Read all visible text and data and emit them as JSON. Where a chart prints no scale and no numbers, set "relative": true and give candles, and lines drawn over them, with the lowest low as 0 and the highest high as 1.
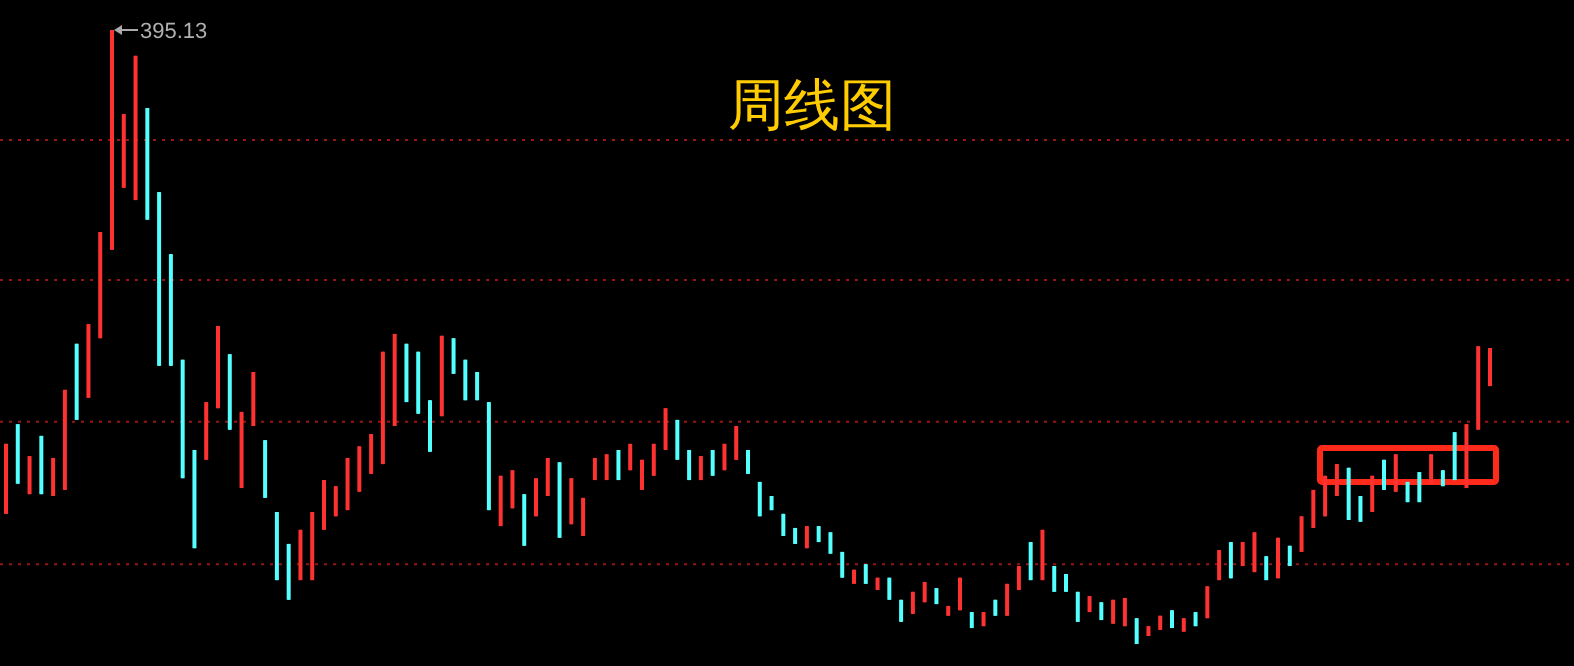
{
  "chart_data": {
    "type": "candlestick",
    "title": "周线图",
    "relative": true,
    "categories": [
      null,
      null,
      null,
      null,
      null,
      null,
      null,
      null,
      null,
      null,
      null,
      null,
      null,
      null,
      null,
      null,
      null,
      null,
      null,
      null,
      null,
      null,
      null,
      null,
      null,
      null,
      null,
      null,
      null,
      null,
      null,
      null,
      null,
      null,
      null,
      null,
      null,
      null,
      null,
      null,
      null,
      null,
      null,
      null,
      null,
      null,
      null,
      null,
      null,
      null,
      null,
      null,
      null,
      null,
      null,
      null,
      null,
      null,
      null,
      null,
      null,
      null,
      null,
      null,
      null,
      null,
      null,
      null,
      null,
      null,
      null,
      null,
      null,
      null,
      null,
      null,
      null,
      null,
      null,
      null,
      null,
      null,
      null,
      null,
      null,
      null,
      null,
      null,
      null,
      null,
      null,
      null,
      null,
      null,
      null,
      null,
      null,
      null,
      null,
      null,
      null,
      null,
      null,
      null,
      null,
      null,
      null,
      null,
      null,
      null,
      null,
      null,
      null,
      null,
      null,
      null,
      null,
      null,
      null,
      null,
      null,
      null,
      null,
      null,
      null,
      null,
      null
    ],
    "ohlc": [
      [
        0.212,
        0.326,
        0.212,
        0.326
      ],
      [
        0.358,
        0.358,
        0.261,
        0.261
      ],
      [
        0.244,
        0.306,
        0.244,
        0.306
      ],
      [
        0.339,
        0.339,
        0.244,
        0.244
      ],
      [
        0.241,
        0.303,
        0.241,
        0.303
      ],
      [
        0.251,
        0.414,
        0.251,
        0.414
      ],
      [
        0.489,
        0.489,
        0.365,
        0.365
      ],
      [
        0.401,
        0.521,
        0.401,
        0.521
      ],
      [
        0.498,
        0.671,
        0.498,
        0.671
      ],
      [
        0.642,
        1,
        0.642,
        1
      ],
      [
        0.743,
        0.863,
        0.743,
        0.863
      ],
      [
        0.723,
        0.958,
        0.723,
        0.958
      ],
      [
        0.873,
        0.873,
        0.691,
        0.691
      ],
      [
        0.736,
        0.736,
        0.453,
        0.453
      ],
      [
        0.635,
        0.635,
        0.453,
        0.453
      ],
      [
        0.463,
        0.463,
        0.27,
        0.27
      ],
      [
        0.316,
        0.316,
        0.156,
        0.156
      ],
      [
        0.3,
        0.394,
        0.3,
        0.394
      ],
      [
        0.384,
        0.518,
        0.384,
        0.518
      ],
      [
        0.472,
        0.472,
        0.349,
        0.349
      ],
      [
        0.254,
        0.378,
        0.254,
        0.378
      ],
      [
        0.355,
        0.443,
        0.355,
        0.443
      ],
      [
        0.332,
        0.332,
        0.238,
        0.238
      ],
      [
        0.215,
        0.215,
        0.104,
        0.104
      ],
      [
        0.163,
        0.163,
        0.072,
        0.072
      ],
      [
        0.104,
        0.186,
        0.104,
        0.186
      ],
      [
        0.104,
        0.215,
        0.104,
        0.215
      ],
      [
        0.186,
        0.267,
        0.186,
        0.267
      ],
      [
        0.208,
        0.257,
        0.208,
        0.257
      ],
      [
        0.218,
        0.303,
        0.218,
        0.303
      ],
      [
        0.248,
        0.322,
        0.248,
        0.322
      ],
      [
        0.277,
        0.342,
        0.277,
        0.342
      ],
      [
        0.293,
        0.476,
        0.293,
        0.476
      ],
      [
        0.355,
        0.505,
        0.355,
        0.505
      ],
      [
        0.489,
        0.489,
        0.394,
        0.394
      ],
      [
        0.476,
        0.476,
        0.375,
        0.375
      ],
      [
        0.397,
        0.397,
        0.313,
        0.313
      ],
      [
        0.371,
        0.502,
        0.371,
        0.502
      ],
      [
        0.498,
        0.498,
        0.44,
        0.44
      ],
      [
        0.463,
        0.463,
        0.397,
        0.397
      ],
      [
        0.443,
        0.443,
        0.397,
        0.397
      ],
      [
        0.394,
        0.394,
        0.218,
        0.218
      ],
      [
        0.192,
        0.274,
        0.192,
        0.274
      ],
      [
        0.221,
        0.283,
        0.221,
        0.283
      ],
      [
        0.244,
        0.244,
        0.16,
        0.16
      ],
      [
        0.208,
        0.27,
        0.208,
        0.27
      ],
      [
        0.241,
        0.303,
        0.241,
        0.303
      ],
      [
        0.296,
        0.296,
        0.173,
        0.173
      ],
      [
        0.195,
        0.27,
        0.195,
        0.27
      ],
      [
        0.176,
        0.238,
        0.176,
        0.238
      ],
      [
        0.267,
        0.303,
        0.267,
        0.303
      ],
      [
        0.267,
        0.309,
        0.267,
        0.309
      ],
      [
        0.316,
        0.316,
        0.267,
        0.267
      ],
      [
        0.283,
        0.326,
        0.283,
        0.326
      ],
      [
        0.251,
        0.3,
        0.251,
        0.3
      ],
      [
        0.274,
        0.326,
        0.274,
        0.326
      ],
      [
        0.316,
        0.384,
        0.316,
        0.384
      ],
      [
        0.365,
        0.365,
        0.3,
        0.3
      ],
      [
        0.316,
        0.316,
        0.267,
        0.267
      ],
      [
        0.267,
        0.306,
        0.267,
        0.306
      ],
      [
        0.316,
        0.316,
        0.274,
        0.274
      ],
      [
        0.283,
        0.326,
        0.283,
        0.326
      ],
      [
        0.3,
        0.355,
        0.3,
        0.355
      ],
      [
        0.316,
        0.316,
        0.277,
        0.277
      ],
      [
        0.264,
        0.264,
        0.208,
        0.208
      ],
      [
        0.241,
        0.241,
        0.218,
        0.218
      ],
      [
        0.212,
        0.212,
        0.176,
        0.176
      ],
      [
        0.189,
        0.189,
        0.163,
        0.163
      ],
      [
        0.156,
        0.192,
        0.156,
        0.192
      ],
      [
        0.192,
        0.192,
        0.166,
        0.166
      ],
      [
        0.182,
        0.182,
        0.147,
        0.147
      ],
      [
        0.15,
        0.15,
        0.108,
        0.108
      ],
      [
        0.098,
        0.121,
        0.098,
        0.121
      ],
      [
        0.13,
        0.13,
        0.098,
        0.098
      ],
      [
        0.088,
        0.108,
        0.088,
        0.108
      ],
      [
        0.108,
        0.108,
        0.072,
        0.072
      ],
      [
        0.072,
        0.072,
        0.036,
        0.036
      ],
      [
        0.049,
        0.085,
        0.049,
        0.085
      ],
      [
        0.068,
        0.101,
        0.068,
        0.101
      ],
      [
        0.091,
        0.091,
        0.065,
        0.065
      ],
      [
        0.046,
        0.062,
        0.046,
        0.062
      ],
      [
        0.055,
        0.108,
        0.055,
        0.108
      ],
      [
        0.052,
        0.052,
        0.026,
        0.026
      ],
      [
        0.029,
        0.052,
        0.029,
        0.052
      ],
      [
        0.072,
        0.072,
        0.046,
        0.046
      ],
      [
        0.046,
        0.098,
        0.046,
        0.098
      ],
      [
        0.088,
        0.127,
        0.088,
        0.127
      ],
      [
        0.166,
        0.166,
        0.104,
        0.104
      ],
      [
        0.104,
        0.186,
        0.104,
        0.186
      ],
      [
        0.127,
        0.127,
        0.085,
        0.085
      ],
      [
        0.114,
        0.114,
        0.085,
        0.085
      ],
      [
        0.085,
        0.085,
        0.036,
        0.036
      ],
      [
        0.052,
        0.078,
        0.052,
        0.078
      ],
      [
        0.068,
        0.068,
        0.039,
        0.039
      ],
      [
        0.033,
        0.072,
        0.033,
        0.072
      ],
      [
        0.029,
        0.075,
        0.029,
        0.075
      ],
      [
        0.042,
        0.042,
        0,
        0
      ],
      [
        0.013,
        0.029,
        0.013,
        0.029
      ],
      [
        0.023,
        0.046,
        0.023,
        0.046
      ],
      [
        0.055,
        0.055,
        0.026,
        0.026
      ],
      [
        0.02,
        0.042,
        0.02,
        0.042
      ],
      [
        0.052,
        0.052,
        0.029,
        0.029
      ],
      [
        0.042,
        0.094,
        0.042,
        0.094
      ],
      [
        0.104,
        0.153,
        0.104,
        0.153
      ],
      [
        0.166,
        0.166,
        0.107,
        0.107
      ],
      [
        0.127,
        0.166,
        0.127,
        0.166
      ],
      [
        0.117,
        0.182,
        0.117,
        0.182
      ],
      [
        0.143,
        0.143,
        0.104,
        0.104
      ],
      [
        0.107,
        0.173,
        0.107,
        0.173
      ],
      [
        0.16,
        0.16,
        0.127,
        0.127
      ],
      [
        0.15,
        0.208,
        0.15,
        0.208
      ],
      [
        0.189,
        0.251,
        0.189,
        0.251
      ],
      [
        0.208,
        0.274,
        0.208,
        0.274
      ],
      [
        0.241,
        0.293,
        0.241,
        0.293
      ],
      [
        0.287,
        0.287,
        0.202,
        0.202
      ],
      [
        0.241,
        0.241,
        0.199,
        0.199
      ],
      [
        0.215,
        0.274,
        0.215,
        0.274
      ],
      [
        0.3,
        0.3,
        0.251,
        0.251
      ],
      [
        0.248,
        0.309,
        0.248,
        0.309
      ],
      [
        0.264,
        0.264,
        0.231,
        0.231
      ],
      [
        0.28,
        0.28,
        0.231,
        0.231
      ],
      [
        0.261,
        0.309,
        0.261,
        0.309
      ],
      [
        0.283,
        0.283,
        0.257,
        0.257
      ],
      [
        0.345,
        0.345,
        0.267,
        0.267
      ],
      [
        0.254,
        0.358,
        0.254,
        0.358
      ],
      [
        0.349,
        0.485,
        0.349,
        0.485
      ],
      [
        0.42,
        0.482,
        0.42,
        0.482
      ]
    ],
    "ref_lines": [
      {
        "axis": "y",
        "value": 0.821,
        "color": "#9a1414",
        "line_style": "dotted"
      },
      {
        "axis": "y",
        "value": 0.593,
        "color": "#9a1414",
        "line_style": "dotted"
      },
      {
        "axis": "y",
        "value": 0.362,
        "color": "#9a1414",
        "line_style": "dotted"
      },
      {
        "axis": "y",
        "value": 0.13,
        "color": "#9a1414",
        "line_style": "dotted"
      }
    ],
    "annotations": [
      "395.13"
    ]
  }
}
